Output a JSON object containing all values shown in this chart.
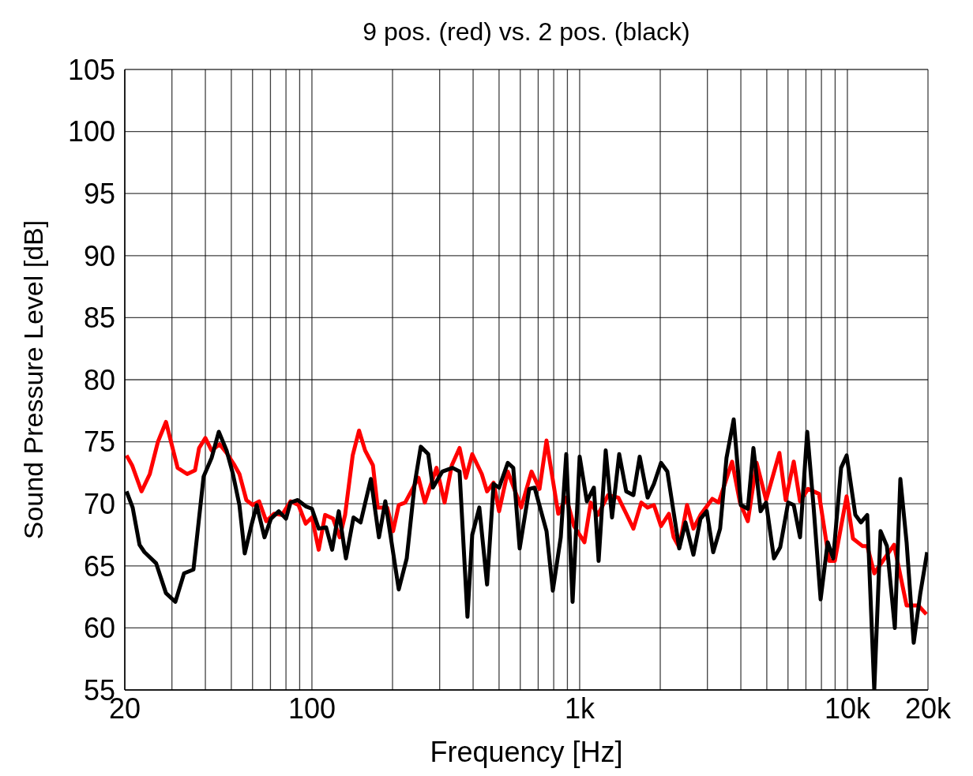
{
  "chart_data": {
    "type": "line",
    "title": "9 pos. (red) vs. 2 pos. (black)",
    "xlabel": "Frequency [Hz]",
    "ylabel": "Sound Pressure Level [dB]",
    "log": "x",
    "grid": true,
    "marker": "none",
    "line_style": "solid",
    "xlim": [
      20,
      20000
    ],
    "xticks": [
      20,
      {
        "value": 30,
        "label": null
      },
      {
        "value": 40,
        "label": null
      },
      {
        "value": 50,
        "label": null
      },
      {
        "value": 60,
        "label": null
      },
      {
        "value": 70,
        "label": null
      },
      {
        "value": 80,
        "label": null
      },
      {
        "value": 90,
        "label": null
      },
      100,
      {
        "value": 200,
        "label": null
      },
      {
        "value": 300,
        "label": null
      },
      {
        "value": 400,
        "label": null
      },
      {
        "value": 500,
        "label": null
      },
      {
        "value": 600,
        "label": null
      },
      {
        "value": 700,
        "label": null
      },
      {
        "value": 800,
        "label": null
      },
      {
        "value": 900,
        "label": null
      },
      {
        "value": 1000,
        "label": "1k"
      },
      {
        "value": 2000,
        "label": null
      },
      {
        "value": 3000,
        "label": null
      },
      {
        "value": 4000,
        "label": null
      },
      {
        "value": 5000,
        "label": null
      },
      {
        "value": 6000,
        "label": null
      },
      {
        "value": 7000,
        "label": null
      },
      {
        "value": 8000,
        "label": null
      },
      {
        "value": 9000,
        "label": null
      },
      {
        "value": 10000,
        "label": "10k"
      },
      {
        "value": 20000,
        "label": "20k"
      }
    ],
    "ylim": [
      55,
      105
    ],
    "yticks": [
      55,
      60,
      65,
      70,
      75,
      80,
      85,
      90,
      95,
      100,
      105
    ],
    "series": [
      {
        "color": "#ff0000",
        "x": [
          20.3,
          21.3,
          23.1,
          24.8,
          26.6,
          28.5,
          31.5,
          34.2,
          36.6,
          37.9,
          40,
          42.2,
          45.2,
          48,
          51.4,
          53.6,
          56.9,
          60.1,
          63.5,
          67.5,
          72.2,
          77.3,
          83.2,
          89.1,
          94.8,
          100,
          106,
          112,
          120,
          127,
          133,
          142,
          150,
          158,
          169,
          176,
          191,
          201,
          211,
          223,
          250,
          264,
          292,
          313,
          333,
          356,
          376,
          397,
          431,
          451,
          477,
          500,
          539,
          605,
          661,
          708,
          752,
          832,
          891,
          953,
          1042,
          1100,
          1169,
          1277,
          1395,
          1493,
          1588,
          1699,
          1794,
          1894,
          2013,
          2155,
          2245,
          2355,
          2518,
          2660,
          2827,
          3129,
          3306,
          3710,
          3970,
          4248,
          4581,
          4970,
          5573,
          5882,
          6304,
          6655,
          7127,
          7835,
          8555,
          8972,
          9935,
          10490,
          11380,
          11860,
          12600,
          13770,
          14940,
          16640,
          18430,
          19720
        ],
        "values": [
          73.9,
          73.1,
          71.0,
          72.4,
          75.0,
          76.6,
          72.9,
          72.4,
          72.7,
          74.5,
          75.3,
          74.3,
          74.8,
          74.1,
          73.1,
          72.4,
          70.3,
          69.9,
          70.2,
          68.6,
          69.2,
          69.1,
          70.2,
          69.9,
          68.4,
          68.9,
          66.3,
          69.1,
          68.8,
          67.3,
          69.1,
          73.9,
          75.9,
          74.3,
          73.1,
          69.7,
          69.7,
          67.8,
          69.9,
          70.1,
          72.1,
          70.1,
          72.9,
          70.1,
          73.1,
          74.5,
          72.1,
          74.0,
          72.4,
          71.0,
          71.7,
          69.4,
          72.6,
          69.7,
          72.6,
          71.2,
          75.1,
          69.2,
          70.5,
          68.2,
          66.9,
          70.1,
          69.1,
          70.7,
          70.5,
          69.2,
          68.0,
          70.1,
          69.7,
          69.9,
          68.2,
          69.2,
          67.3,
          66.5,
          69.9,
          68.0,
          69.1,
          70.4,
          70.1,
          73.4,
          70.1,
          68.6,
          73.3,
          70.3,
          74.1,
          70.3,
          73.4,
          70.2,
          71.2,
          70.8,
          65.4,
          65.4,
          70.6,
          67.2,
          66.6,
          66.6,
          64.4,
          65.6,
          66.7,
          61.8,
          61.8,
          61.1
        ]
      },
      {
        "color": "#000000",
        "x": [
          20.3,
          21.4,
          22.7,
          23.7,
          26.2,
          28.5,
          30.9,
          33.3,
          36.1,
          39.4,
          42.2,
          44.9,
          48,
          50.7,
          53.6,
          56.1,
          59.3,
          62.2,
          66.5,
          70.3,
          75.2,
          80,
          83.2,
          88.5,
          94.8,
          100,
          106,
          113,
          119,
          126,
          134,
          143,
          152,
          166,
          178,
          188,
          211,
          226,
          242,
          255,
          272,
          283,
          307,
          335,
          356,
          381,
          397,
          422,
          451,
          477,
          500,
          539,
          565,
          597,
          648,
          679,
          752,
          794,
          850,
          891,
          941,
          1000,
          1064,
          1130,
          1177,
          1251,
          1321,
          1405,
          1493,
          1588,
          1676,
          1794,
          1894,
          2013,
          2126,
          2355,
          2485,
          2660,
          2827,
          2983,
          3154,
          3347,
          3536,
          3762,
          4000,
          4248,
          4457,
          4741,
          4970,
          5318,
          5611,
          6008,
          6304,
          6655,
          7080,
          7468,
          7944,
          8442,
          8853,
          9474,
          9935,
          10710,
          11230,
          11860,
          12600,
          13300,
          14050,
          15040,
          15770,
          16640,
          17690,
          18700,
          19860
        ],
        "values": [
          71.0,
          69.7,
          66.7,
          66.1,
          65.2,
          62.8,
          62.1,
          64.4,
          64.7,
          72.2,
          73.7,
          75.8,
          74.3,
          72.4,
          69.9,
          66.0,
          68.2,
          69.9,
          67.3,
          68.8,
          69.4,
          68.8,
          70.1,
          70.3,
          69.8,
          69.6,
          68.0,
          68.1,
          66.3,
          69.4,
          65.6,
          68.9,
          68.5,
          72.0,
          67.3,
          70.2,
          63.1,
          65.6,
          71.6,
          74.6,
          74.0,
          71.3,
          72.6,
          72.9,
          72.6,
          60.9,
          67.5,
          69.7,
          63.5,
          71.6,
          71.3,
          73.3,
          72.9,
          66.4,
          71.2,
          71.3,
          67.8,
          63.0,
          67.3,
          74.0,
          62.1,
          73.8,
          70.2,
          71.3,
          65.4,
          74.3,
          68.9,
          74.0,
          71.0,
          70.7,
          73.8,
          70.5,
          71.6,
          73.3,
          72.6,
          66.4,
          68.5,
          65.9,
          68.8,
          69.4,
          66.1,
          68.0,
          73.7,
          76.8,
          69.9,
          69.6,
          74.5,
          69.4,
          70.1,
          65.6,
          66.5,
          70.1,
          69.9,
          67.3,
          75.8,
          69.9,
          62.3,
          66.9,
          65.6,
          72.9,
          73.9,
          69.1,
          68.5,
          69.1,
          55,
          67.8,
          66.6,
          60.0,
          72.0,
          66.9,
          58.8,
          62.7,
          66.1
        ]
      }
    ]
  }
}
